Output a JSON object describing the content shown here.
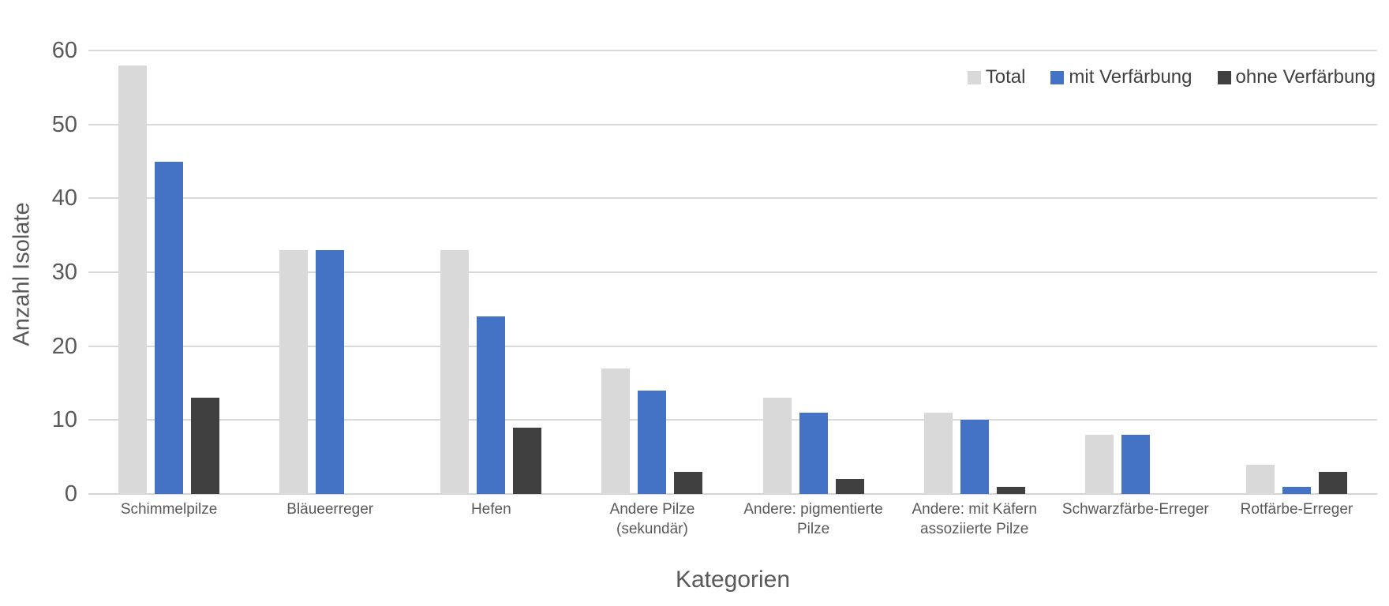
{
  "chart_data": {
    "type": "bar",
    "title": "",
    "xlabel": "Kategorien",
    "ylabel": "Anzahl Isolate",
    "ylim": [
      0,
      60
    ],
    "ytick_step": 10,
    "grid": true,
    "legend_position": "top-right",
    "categories": [
      "Schimmelpilze",
      "Bläueerreger",
      "Hefen",
      "Andere Pilze (sekundär)",
      "Andere: pigmentierte Pilze",
      "Andere: mit Käfern assoziierte Pilze",
      "Schwarzfärbe-Erreger",
      "Rotfärbe-Erreger"
    ],
    "series": [
      {
        "name": "Total",
        "color": "#d9d9d9",
        "values": [
          58,
          33,
          33,
          17,
          13,
          11,
          8,
          4
        ]
      },
      {
        "name": "mit Verfärbung",
        "color": "#4472c4",
        "values": [
          45,
          33,
          24,
          14,
          11,
          10,
          8,
          1
        ]
      },
      {
        "name": "ohne Verfärbung",
        "color": "#404040",
        "values": [
          13,
          0,
          9,
          3,
          2,
          1,
          0,
          3
        ]
      }
    ]
  },
  "colors": {
    "background": "#ffffff",
    "axis_text": "#595959",
    "legend_text": "#404040",
    "gridline": "#d9d9d9"
  }
}
